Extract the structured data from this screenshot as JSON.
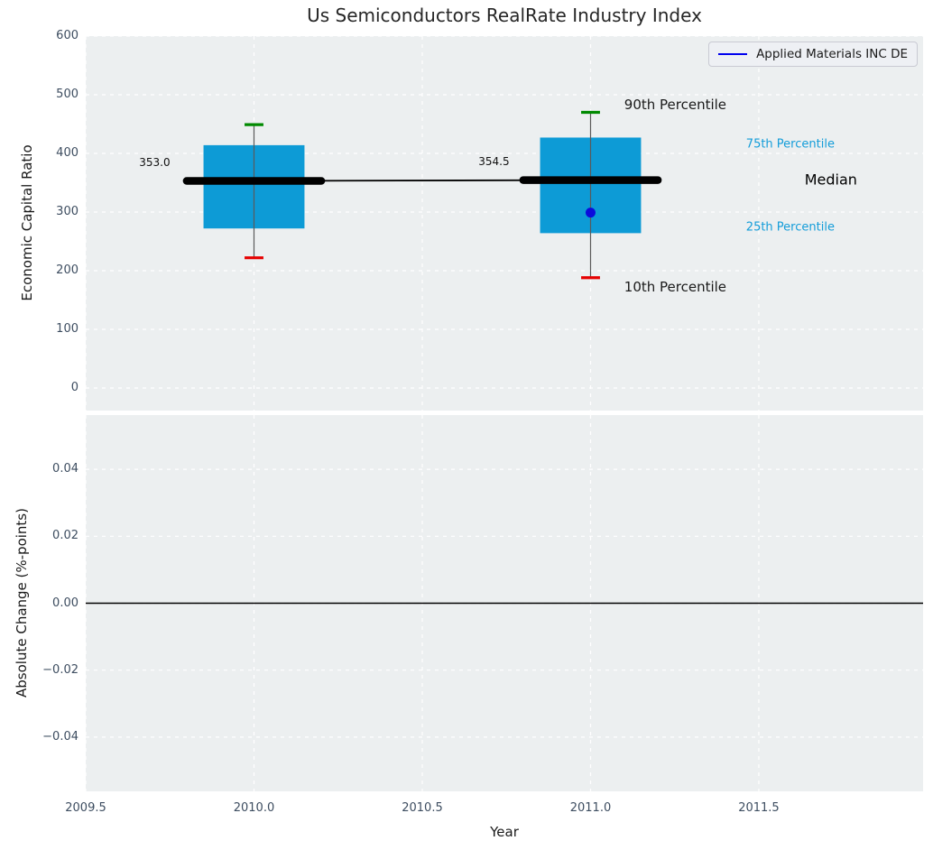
{
  "figure_title": "Us Semiconductors RealRate Industry Index",
  "colors": {
    "axes_background": "#eceff0",
    "grid": "#ffffff",
    "box_fill": "#0d9bd6",
    "whisker": "#5a5a5a",
    "cap_90th": "#008a00",
    "cap_10th": "#e60000",
    "median_line": "#000000",
    "marker_blue": "#0b0bdc",
    "legend_line_blue": "#0000ee",
    "tick_label": "#3d4d60",
    "percentile_label": "#149dd9",
    "zero_line": "#000000"
  },
  "chart_data": [
    {
      "type": "boxplot",
      "title": "Us Semiconductors RealRate Industry Index",
      "ylabel": "Economic Capital Ratio",
      "xlim": [
        2009.5,
        2011.988
      ],
      "ylim": [
        -38.5,
        600
      ],
      "grid": true,
      "yticks": [
        0,
        100,
        200,
        300,
        400,
        500,
        600
      ],
      "ytick_labels": [
        "0",
        "100",
        "200",
        "300",
        "400",
        "500",
        "600"
      ],
      "xgrid_ticks": [
        2009.5,
        2010.0,
        2010.5,
        2011.0,
        2011.5
      ],
      "legend": {
        "position": "upper right",
        "entries": [
          {
            "label": "Applied Materials INC DE",
            "color": "#0000ee"
          }
        ]
      },
      "boxes": [
        {
          "x": 2010.0,
          "median": 353.0,
          "median_label": "353.0",
          "q1": 272,
          "q3": 414,
          "p10": 222,
          "p90": 449
        },
        {
          "x": 2011.0,
          "median": 354.5,
          "median_label": "354.5",
          "q1": 264,
          "q3": 427,
          "p10": 188,
          "p90": 470
        }
      ],
      "median_connector": true,
      "marker": {
        "series": "Applied Materials INC DE",
        "x": 2011.0,
        "y": 299
      },
      "annotations": [
        {
          "text": "353.0",
          "x": 2009.705,
          "y": 385,
          "size": 12,
          "anchor": "middle",
          "color": "#111111"
        },
        {
          "text": "354.5",
          "x": 2010.713,
          "y": 386,
          "size": 12,
          "anchor": "middle",
          "color": "#111111"
        },
        {
          "text": "90th Percentile",
          "x": 2011.1,
          "y": 483,
          "size": 15,
          "anchor": "start",
          "color": "#1a1a1a"
        },
        {
          "text": "10th Percentile",
          "x": 2011.1,
          "y": 172,
          "size": 15,
          "anchor": "start",
          "color": "#1a1a1a"
        },
        {
          "text": "75th Percentile",
          "x": 2011.462,
          "y": 416,
          "size": 13,
          "anchor": "start",
          "color": "#149dd9"
        },
        {
          "text": "25th Percentile",
          "x": 2011.462,
          "y": 274,
          "size": 13,
          "anchor": "start",
          "color": "#149dd9"
        },
        {
          "text": "Median",
          "x": 2011.636,
          "y": 355,
          "size": 16,
          "anchor": "start",
          "color": "#000000"
        }
      ]
    },
    {
      "type": "line",
      "ylabel": "Absolute Change (%-points)",
      "xlabel": "Year",
      "xlim": [
        2009.5,
        2011.988
      ],
      "ylim": [
        -0.0562,
        0.0562
      ],
      "grid": true,
      "yticks": [
        0.04,
        0.02,
        0.0,
        -0.02,
        -0.04
      ],
      "ytick_labels": [
        "0.04",
        "0.02",
        "0.00",
        "−0.02",
        "−0.04"
      ],
      "xticks": [
        2009.5,
        2010.0,
        2010.5,
        2011.0,
        2011.5
      ],
      "xtick_labels": [
        "2009.5",
        "2010.0",
        "2010.5",
        "2011.0",
        "2011.5"
      ],
      "zero_line": {
        "y": 0.0
      },
      "series": []
    }
  ]
}
